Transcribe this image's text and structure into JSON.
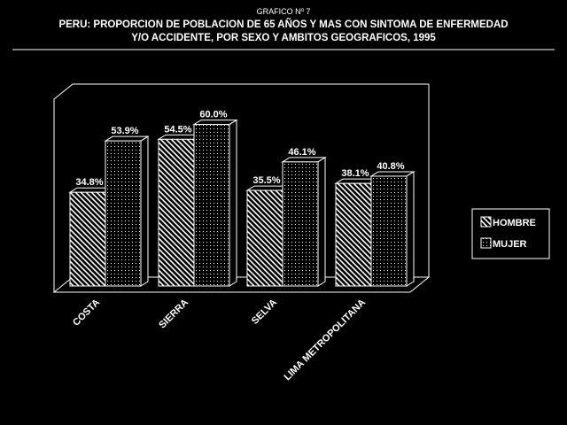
{
  "figure_number": "GRAFICO Nº 7",
  "title_line1": "PERU: PROPORCION DE POBLACION DE 65 AÑOS Y MAS CON SINTOMA DE ENFERMEDAD",
  "title_line2": "Y/O ACCIDENTE, POR SEXO Y AMBITOS GEOGRAFICOS, 1995",
  "colors": {
    "background": "#000000",
    "foreground": "#ffffff"
  },
  "chart_data": {
    "type": "bar",
    "title": "PERU: PROPORCION DE POBLACION DE 65 AÑOS Y MAS CON SINTOMA DE ENFERMEDAD Y/O ACCIDENTE, POR SEXO Y AMBITOS GEOGRAFICOS, 1995",
    "categories": [
      "COSTA",
      "SIERRA",
      "SELVA",
      "LIMA METROPOLITANA"
    ],
    "series": [
      {
        "name": "HOMBRE",
        "values": [
          34.8,
          54.5,
          35.5,
          38.1
        ],
        "labels": [
          "34.8%",
          "54.5%",
          "35.5%",
          "38.1%"
        ],
        "pattern": "hatch"
      },
      {
        "name": "MUJER",
        "values": [
          53.9,
          60.0,
          46.1,
          40.8
        ],
        "labels": [
          "53.9%",
          "60.0%",
          "46.1%",
          "40.8%"
        ],
        "pattern": "dots"
      }
    ],
    "ylim": [
      0,
      75
    ],
    "legend_position": "right",
    "grid": false,
    "three_d": true
  }
}
